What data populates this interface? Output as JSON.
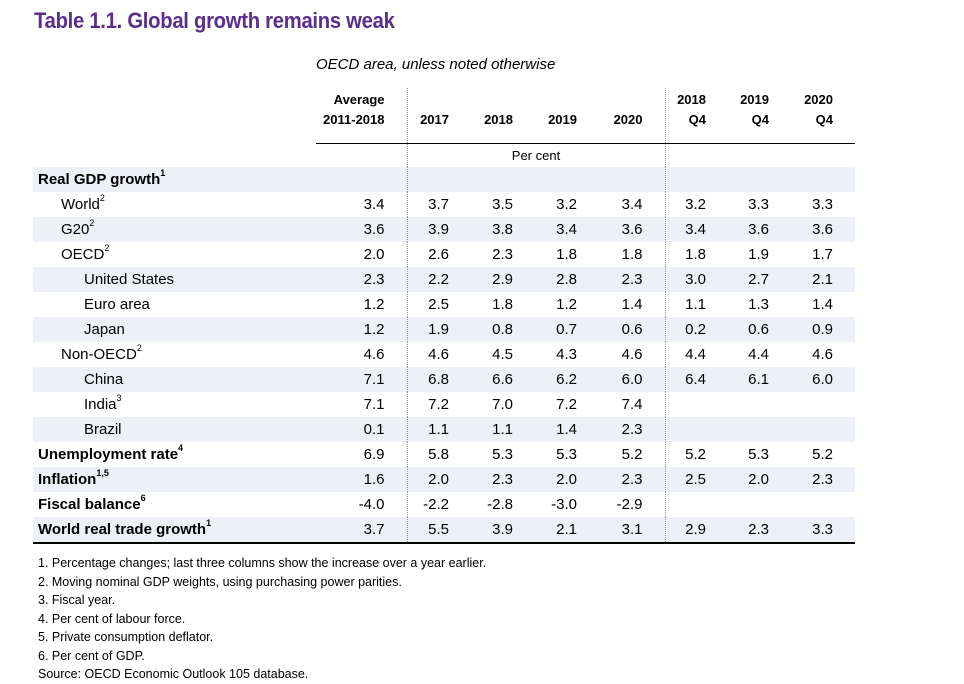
{
  "title": "Table 1.1. Global growth remains weak",
  "subtitle": "OECD area, unless noted otherwise",
  "colors": {
    "title": "#5b2d8e",
    "row_shade": "#edf0f9"
  },
  "columns": [
    {
      "line1": "Average",
      "line2": "2011-2018"
    },
    {
      "line1": "",
      "line2": "2017"
    },
    {
      "line1": "",
      "line2": "2018"
    },
    {
      "line1": "",
      "line2": "2019"
    },
    {
      "line1": "",
      "line2": "2020"
    },
    {
      "line1": "2018",
      "line2": "Q4"
    },
    {
      "line1": "2019",
      "line2": "Q4"
    },
    {
      "line1": "2020",
      "line2": "Q4"
    }
  ],
  "unit": "Per cent",
  "rows": [
    {
      "label": "Real GDP growth",
      "sup": "1",
      "level": 0,
      "values": [
        "",
        "",
        "",
        "",
        "",
        "",
        "",
        ""
      ]
    },
    {
      "label": "World",
      "sup": "2",
      "level": 1,
      "values": [
        "3.4",
        "3.7",
        "3.5",
        "3.2",
        "3.4",
        "3.2",
        "3.3",
        "3.3"
      ]
    },
    {
      "label": "G20",
      "sup": "2",
      "level": 1,
      "values": [
        "3.6",
        "3.9",
        "3.8",
        "3.4",
        "3.6",
        "3.4",
        "3.6",
        "3.6"
      ]
    },
    {
      "label": "OECD",
      "sup": "2",
      "level": 1,
      "values": [
        "2.0",
        "2.6",
        "2.3",
        "1.8",
        "1.8",
        "1.8",
        "1.9",
        "1.7"
      ]
    },
    {
      "label": "United States",
      "sup": "",
      "level": 2,
      "values": [
        "2.3",
        "2.2",
        "2.9",
        "2.8",
        "2.3",
        "3.0",
        "2.7",
        "2.1"
      ]
    },
    {
      "label": "Euro area",
      "sup": "",
      "level": 2,
      "values": [
        "1.2",
        "2.5",
        "1.8",
        "1.2",
        "1.4",
        "1.1",
        "1.3",
        "1.4"
      ]
    },
    {
      "label": "Japan",
      "sup": "",
      "level": 2,
      "values": [
        "1.2",
        "1.9",
        "0.8",
        "0.7",
        "0.6",
        "0.2",
        "0.6",
        "0.9"
      ]
    },
    {
      "label": "Non-OECD",
      "sup": "2",
      "level": 1,
      "values": [
        "4.6",
        "4.6",
        "4.5",
        "4.3",
        "4.6",
        "4.4",
        "4.4",
        "4.6"
      ]
    },
    {
      "label": "China",
      "sup": "",
      "level": 2,
      "values": [
        "7.1",
        "6.8",
        "6.6",
        "6.2",
        "6.0",
        "6.4",
        "6.1",
        "6.0"
      ]
    },
    {
      "label": "India",
      "sup": "3",
      "level": 2,
      "values": [
        "7.1",
        "7.2",
        "7.0",
        "7.2",
        "7.4",
        "",
        "",
        ""
      ]
    },
    {
      "label": "Brazil",
      "sup": "",
      "level": 2,
      "values": [
        "0.1",
        "1.1",
        "1.1",
        "1.4",
        "2.3",
        "",
        "",
        ""
      ]
    },
    {
      "label": "Unemployment rate",
      "sup": "4",
      "level": 0,
      "values": [
        "6.9",
        "5.8",
        "5.3",
        "5.3",
        "5.2",
        "5.2",
        "5.3",
        "5.2"
      ]
    },
    {
      "label": "Inflation",
      "sup": "1,5",
      "level": 0,
      "values": [
        "1.6",
        "2.0",
        "2.3",
        "2.0",
        "2.3",
        "2.5",
        "2.0",
        "2.3"
      ]
    },
    {
      "label": "Fiscal balance",
      "sup": "6",
      "level": 0,
      "values": [
        "-4.0",
        "-2.2",
        "-2.8",
        "-3.0",
        "-2.9",
        "",
        "",
        ""
      ]
    },
    {
      "label": "World real trade growth",
      "sup": "1",
      "level": 0,
      "values": [
        "3.7",
        "5.5",
        "3.9",
        "2.1",
        "3.1",
        "2.9",
        "2.3",
        "3.3"
      ]
    }
  ],
  "notes": [
    "1. Percentage changes; last three columns show the increase over a year earlier.",
    "2. Moving nominal GDP weights, using purchasing power parities.",
    "3. Fiscal year.",
    "4. Per cent of labour force.",
    "5. Private consumption deflator.",
    "6. Per cent of GDP.",
    "Source: OECD Economic Outlook 105 database."
  ]
}
